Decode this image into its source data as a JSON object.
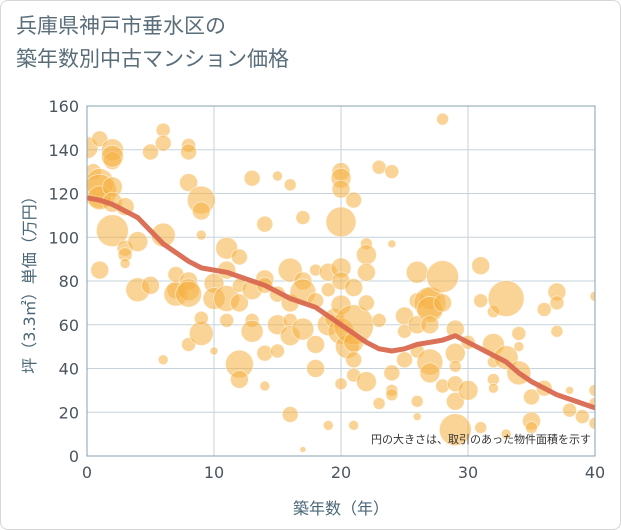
{
  "title_lines": [
    "兵庫県神戸市垂水区の",
    "築年数別中古マンション価格"
  ],
  "colors": {
    "bubble": "#f5b041",
    "trend": "#d9694f",
    "grid": "#c6d3dc",
    "plot_border": "#8aa2b0",
    "title": "#5a6e7a"
  },
  "chart_data": {
    "type": "scatter",
    "title": "兵庫県神戸市垂水区の築年数別中古マンション価格",
    "xlabel": "築年数（年）",
    "ylabel": "坪（3.3㎡）単価（万円）",
    "xlim": [
      0,
      40
    ],
    "ylim": [
      0,
      160
    ],
    "xticks": [
      "0",
      "10",
      "20",
      "30",
      "40"
    ],
    "yticks": [
      "0",
      "20",
      "40",
      "60",
      "80",
      "100",
      "120",
      "140",
      "160"
    ],
    "grid": true,
    "annotation": "円の大きさは、取引のあった物件面積を示す",
    "series": [
      {
        "kind": "bubble",
        "points": [
          [
            0,
            141,
            11
          ],
          [
            0.5,
            130,
            8
          ],
          [
            1,
            145,
            8
          ],
          [
            1,
            125,
            14
          ],
          [
            1,
            121,
            17
          ],
          [
            1,
            118,
            12
          ],
          [
            1,
            85,
            9
          ],
          [
            2,
            140,
            11
          ],
          [
            2,
            135,
            9
          ],
          [
            2,
            137,
            11
          ],
          [
            2,
            123,
            10
          ],
          [
            2,
            116,
            10
          ],
          [
            2,
            103,
            16
          ],
          [
            3,
            114,
            9
          ],
          [
            3,
            95,
            8
          ],
          [
            3,
            92,
            7
          ],
          [
            3,
            88,
            5
          ],
          [
            4,
            98,
            10
          ],
          [
            4,
            76,
            12
          ],
          [
            5,
            139,
            8
          ],
          [
            5,
            78,
            9
          ],
          [
            6,
            149,
            7
          ],
          [
            6,
            143,
            8
          ],
          [
            6,
            101,
            12
          ],
          [
            6,
            44,
            5
          ],
          [
            7,
            76,
            9
          ],
          [
            7,
            74,
            12
          ],
          [
            7,
            83,
            8
          ],
          [
            8,
            142,
            7
          ],
          [
            8,
            139,
            8
          ],
          [
            8,
            125,
            9
          ],
          [
            8,
            80,
            9
          ],
          [
            8,
            76,
            11
          ],
          [
            8,
            74,
            13
          ],
          [
            8,
            51,
            7
          ],
          [
            9,
            117,
            14
          ],
          [
            9,
            112,
            9
          ],
          [
            9,
            101,
            5
          ],
          [
            9,
            56,
            12
          ],
          [
            9,
            63,
            7
          ],
          [
            10,
            79,
            10
          ],
          [
            10,
            72,
            11
          ],
          [
            10,
            48,
            4
          ],
          [
            11,
            95,
            11
          ],
          [
            11,
            85,
            9
          ],
          [
            11,
            72,
            13
          ],
          [
            11,
            62,
            7
          ],
          [
            12,
            91,
            8
          ],
          [
            12,
            78,
            7
          ],
          [
            12,
            70,
            9
          ],
          [
            12,
            42,
            14
          ],
          [
            12,
            35,
            9
          ],
          [
            13,
            127,
            8
          ],
          [
            13,
            76,
            10
          ],
          [
            13,
            62,
            7
          ],
          [
            13,
            57,
            11
          ],
          [
            14,
            106,
            8
          ],
          [
            14,
            81,
            9
          ],
          [
            14,
            78,
            8
          ],
          [
            14,
            47,
            8
          ],
          [
            14,
            32,
            5
          ],
          [
            15,
            128,
            5
          ],
          [
            15,
            74,
            8
          ],
          [
            15,
            60,
            10
          ],
          [
            15,
            48,
            7
          ],
          [
            16,
            124,
            6
          ],
          [
            16,
            85,
            12
          ],
          [
            16,
            70,
            9
          ],
          [
            16,
            62,
            7
          ],
          [
            16,
            55,
            10
          ],
          [
            16,
            19,
            8
          ],
          [
            17,
            109,
            7
          ],
          [
            17,
            80,
            9
          ],
          [
            17,
            75,
            13
          ],
          [
            17,
            58,
            11
          ],
          [
            17,
            3,
            3
          ],
          [
            18,
            85,
            6
          ],
          [
            18,
            71,
            8
          ],
          [
            18,
            51,
            9
          ],
          [
            18,
            40,
            9
          ],
          [
            19,
            84,
            9
          ],
          [
            19,
            76,
            7
          ],
          [
            19,
            60,
            11
          ],
          [
            19,
            14,
            5
          ],
          [
            19.5,
            63,
            10
          ],
          [
            20,
            130,
            9
          ],
          [
            20,
            127,
            10
          ],
          [
            20,
            122,
            9
          ],
          [
            20,
            107,
            15
          ],
          [
            20,
            86,
            10
          ],
          [
            20,
            80,
            9
          ],
          [
            20,
            69,
            10
          ],
          [
            20,
            57,
            13
          ],
          [
            20,
            33,
            6
          ],
          [
            20.5,
            50,
            12
          ],
          [
            21,
            117,
            8
          ],
          [
            21,
            77,
            9
          ],
          [
            21,
            60,
            20
          ],
          [
            21,
            52,
            10
          ],
          [
            21,
            44,
            8
          ],
          [
            21,
            37,
            7
          ],
          [
            21,
            14,
            5
          ],
          [
            22,
            97,
            6
          ],
          [
            22,
            92,
            10
          ],
          [
            22,
            84,
            9
          ],
          [
            22,
            70,
            8
          ],
          [
            22,
            34,
            10
          ],
          [
            23,
            132,
            7
          ],
          [
            23,
            62,
            7
          ],
          [
            23,
            24,
            6
          ],
          [
            24,
            130,
            7
          ],
          [
            24,
            97,
            4
          ],
          [
            24,
            38,
            8
          ],
          [
            24,
            30,
            6
          ],
          [
            24,
            28,
            6
          ],
          [
            25,
            64,
            9
          ],
          [
            25,
            57,
            7
          ],
          [
            25,
            44,
            8
          ],
          [
            26,
            84,
            11
          ],
          [
            26,
            71,
            8
          ],
          [
            26,
            60,
            9
          ],
          [
            26,
            48,
            7
          ],
          [
            26,
            25,
            6
          ],
          [
            26,
            18,
            4
          ],
          [
            27,
            72,
            11
          ],
          [
            27,
            70,
            16
          ],
          [
            27,
            67,
            13
          ],
          [
            27,
            60,
            9
          ],
          [
            27,
            43,
            13
          ],
          [
            27,
            38,
            10
          ],
          [
            28,
            154,
            6
          ],
          [
            28,
            82,
            16
          ],
          [
            28,
            70,
            9
          ],
          [
            28,
            32,
            7
          ],
          [
            29,
            58,
            9
          ],
          [
            29,
            47,
            10
          ],
          [
            29,
            41,
            6
          ],
          [
            29,
            33,
            8
          ],
          [
            29,
            25,
            9
          ],
          [
            29,
            12,
            16
          ],
          [
            30,
            52,
            7
          ],
          [
            30,
            30,
            10
          ],
          [
            31,
            87,
            9
          ],
          [
            31,
            71,
            7
          ],
          [
            31,
            13,
            6
          ],
          [
            32,
            66,
            6
          ],
          [
            32,
            51,
            11
          ],
          [
            32,
            43,
            6
          ],
          [
            32,
            35,
            6
          ],
          [
            32,
            31,
            5
          ],
          [
            33,
            72,
            18
          ],
          [
            33,
            45,
            12
          ],
          [
            33,
            10,
            5
          ],
          [
            34,
            56,
            7
          ],
          [
            34,
            50,
            5
          ],
          [
            34,
            38,
            12
          ],
          [
            35,
            27,
            8
          ],
          [
            35,
            16,
            9
          ],
          [
            35,
            13,
            6
          ],
          [
            36,
            67,
            7
          ],
          [
            36,
            31,
            8
          ],
          [
            37,
            75,
            9
          ],
          [
            37,
            70,
            7
          ],
          [
            37,
            57,
            6
          ],
          [
            38,
            30,
            4
          ],
          [
            38,
            21,
            7
          ],
          [
            39,
            18,
            7
          ],
          [
            40,
            73,
            5
          ],
          [
            40,
            30,
            6
          ],
          [
            40,
            24,
            6
          ],
          [
            40,
            15,
            6
          ]
        ]
      },
      {
        "kind": "trend",
        "points": [
          [
            0,
            118
          ],
          [
            1,
            117
          ],
          [
            2,
            115
          ],
          [
            3,
            112
          ],
          [
            4,
            109
          ],
          [
            5,
            103
          ],
          [
            6,
            97
          ],
          [
            7,
            93
          ],
          [
            8,
            89
          ],
          [
            9,
            86
          ],
          [
            10,
            85
          ],
          [
            11,
            84
          ],
          [
            12,
            82
          ],
          [
            13,
            80
          ],
          [
            14,
            78
          ],
          [
            15,
            75
          ],
          [
            16,
            72
          ],
          [
            17,
            70
          ],
          [
            18,
            68
          ],
          [
            19,
            64
          ],
          [
            20,
            60
          ],
          [
            21,
            56
          ],
          [
            22,
            52
          ],
          [
            23,
            49
          ],
          [
            24,
            48
          ],
          [
            25,
            49
          ],
          [
            26,
            51
          ],
          [
            27,
            52
          ],
          [
            28,
            53
          ],
          [
            29,
            55
          ],
          [
            30,
            52
          ],
          [
            31,
            49
          ],
          [
            32,
            46
          ],
          [
            33,
            43
          ],
          [
            34,
            38
          ],
          [
            35,
            34
          ],
          [
            36,
            31
          ],
          [
            37,
            28
          ],
          [
            38,
            26
          ],
          [
            39,
            24
          ],
          [
            40,
            22
          ]
        ]
      }
    ]
  }
}
